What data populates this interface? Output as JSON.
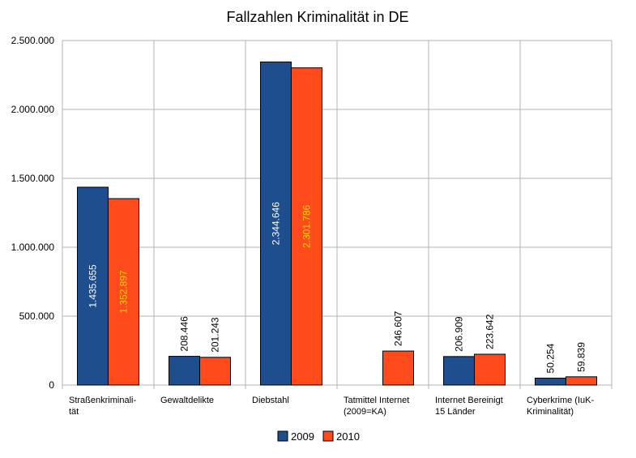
{
  "chart_data": {
    "type": "bar",
    "title": "Fallzahlen Kriminalität in DE",
    "xlabel": "",
    "ylabel": "",
    "ylim": [
      0,
      2500000
    ],
    "yticks": [
      {
        "value": 0,
        "label": "0"
      },
      {
        "value": 500000,
        "label": "500.000"
      },
      {
        "value": 1000000,
        "label": "1.000.000"
      },
      {
        "value": 1500000,
        "label": "1.500.000"
      },
      {
        "value": 2000000,
        "label": "2.000.000"
      },
      {
        "value": 2500000,
        "label": "2.500.000"
      }
    ],
    "categories": [
      [
        "Straßenkriminali-",
        "tät"
      ],
      [
        "Gewaltdelikte"
      ],
      [
        "Diebstahl"
      ],
      [
        "Tatmittel Internet",
        "(2009=KA)"
      ],
      [
        "Internet Bereinigt",
        "15 Länder"
      ],
      [
        "Cyberkrime (IuK-",
        "Kriminalität)"
      ]
    ],
    "series": [
      {
        "name": "2009",
        "color": "#1f4e8f",
        "values": [
          1435655,
          208446,
          2344646,
          null,
          206909,
          50254
        ],
        "labels": [
          "1.435.655",
          "208.446",
          "2.344.646",
          "",
          "206.909",
          "50.254"
        ]
      },
      {
        "name": "2010",
        "color": "#ff4a1c",
        "values": [
          1352897,
          201243,
          2301786,
          246607,
          223642,
          59839
        ],
        "labels": [
          "1.352.897",
          "201.243",
          "2.301.786",
          "246.607",
          "223.642",
          "59.839"
        ]
      }
    ],
    "grid": true,
    "legend_position": "bottom"
  }
}
